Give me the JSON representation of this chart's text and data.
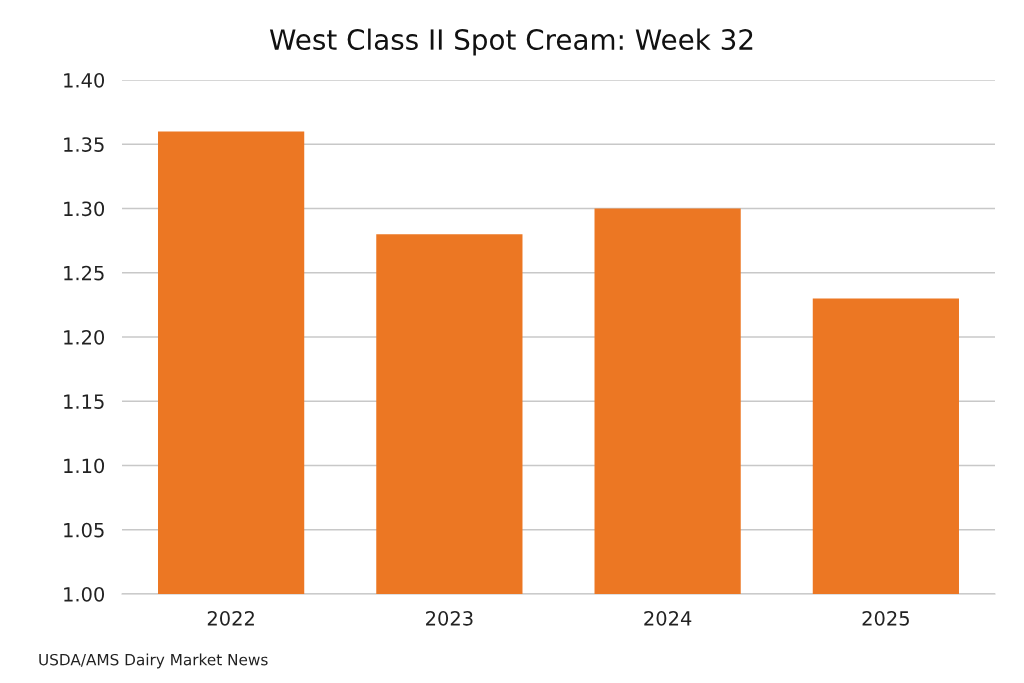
{
  "chart_data": {
    "type": "bar",
    "title": "West Class II Spot Cream: Week 32",
    "categories": [
      "2022",
      "2023",
      "2024",
      "2025"
    ],
    "values": [
      1.36,
      1.28,
      1.3,
      1.23
    ],
    "color": "#ec7723",
    "ylim": [
      1.0,
      1.4
    ],
    "yticks": [
      {
        "value": 1.0,
        "label": "1.00"
      },
      {
        "value": 1.05,
        "label": "1.05"
      },
      {
        "value": 1.1,
        "label": "1.10"
      },
      {
        "value": 1.15,
        "label": "1.15"
      },
      {
        "value": 1.2,
        "label": "1.20"
      },
      {
        "value": 1.25,
        "label": "1.25"
      },
      {
        "value": 1.3,
        "label": "1.30"
      },
      {
        "value": 1.35,
        "label": "1.35"
      },
      {
        "value": 1.4,
        "label": "1.40"
      }
    ],
    "grid": "y",
    "legend": false,
    "annotations": [
      "USDA/AMS Dairy Market News"
    ]
  }
}
